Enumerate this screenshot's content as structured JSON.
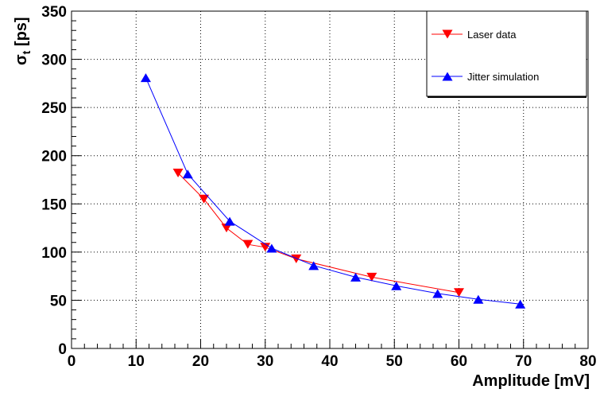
{
  "chart_data": {
    "type": "scatter",
    "xlabel": "Amplitude [mV]",
    "ylabel_symbol": "σ",
    "ylabel_subscript": "t",
    "ylabel_unit": " [ps]",
    "xlim": [
      0,
      80
    ],
    "ylim": [
      0,
      350
    ],
    "x_ticks": [
      0,
      10,
      20,
      30,
      40,
      50,
      60,
      70,
      80
    ],
    "y_ticks": [
      0,
      50,
      100,
      150,
      200,
      250,
      300,
      350
    ],
    "grid": true,
    "legend_position": "top-right",
    "series": [
      {
        "name": "Laser data",
        "color": "#ff0000",
        "marker": "triangle-down",
        "points": [
          {
            "x": 16.5,
            "y": 182
          },
          {
            "x": 20.5,
            "y": 155
          },
          {
            "x": 24.0,
            "y": 125
          },
          {
            "x": 27.3,
            "y": 108
          },
          {
            "x": 30.0,
            "y": 105
          },
          {
            "x": 34.8,
            "y": 93
          },
          {
            "x": 46.5,
            "y": 74
          },
          {
            "x": 60.0,
            "y": 58
          }
        ]
      },
      {
        "name": "Jitter simulation",
        "color": "#0000ff",
        "marker": "triangle-up",
        "points": [
          {
            "x": 11.5,
            "y": 281
          },
          {
            "x": 18.0,
            "y": 181
          },
          {
            "x": 24.5,
            "y": 132
          },
          {
            "x": 31.0,
            "y": 104
          },
          {
            "x": 37.5,
            "y": 86
          },
          {
            "x": 44.0,
            "y": 74
          },
          {
            "x": 50.3,
            "y": 65
          },
          {
            "x": 56.7,
            "y": 57
          },
          {
            "x": 63.0,
            "y": 51
          },
          {
            "x": 69.5,
            "y": 46
          }
        ]
      }
    ]
  }
}
